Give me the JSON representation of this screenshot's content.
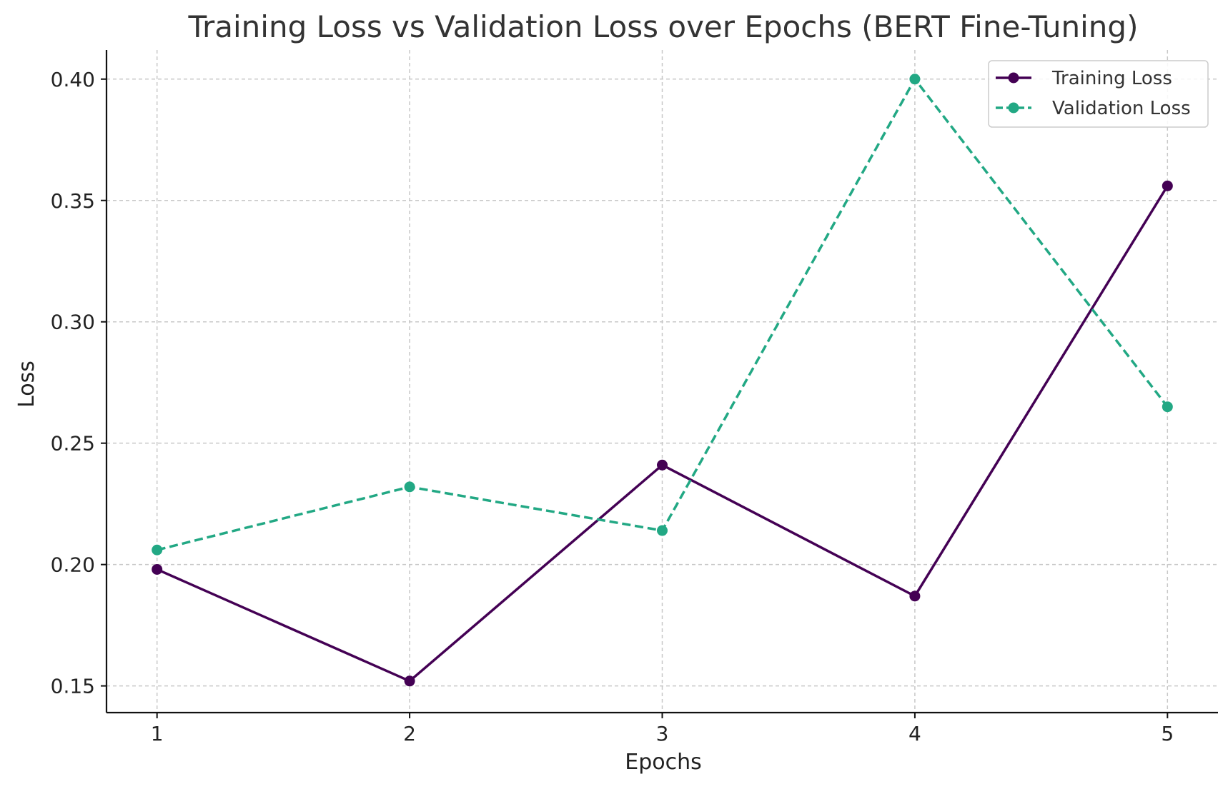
{
  "chart_data": {
    "type": "line",
    "title": "Training Loss vs Validation Loss over Epochs (BERT Fine-Tuning)",
    "xlabel": "Epochs",
    "ylabel": "Loss",
    "x": [
      1,
      2,
      3,
      4,
      5
    ],
    "xlim": [
      0.8,
      5.2
    ],
    "ylim": [
      0.139,
      0.412
    ],
    "xticks": [
      "1",
      "2",
      "3",
      "4",
      "5"
    ],
    "yticks": [
      0.15,
      0.2,
      0.25,
      0.3,
      0.35,
      0.4
    ],
    "ytick_labels": [
      "0.15",
      "0.20",
      "0.25",
      "0.30",
      "0.35",
      "0.40"
    ],
    "grid": true,
    "legend_position": "top-right",
    "series": [
      {
        "name": "Training Loss",
        "values": [
          0.198,
          0.152,
          0.241,
          0.187,
          0.356
        ],
        "color": "#440154",
        "line_style": "solid",
        "marker": "circle"
      },
      {
        "name": "Validation Loss",
        "values": [
          0.206,
          0.232,
          0.214,
          0.4,
          0.265
        ],
        "color": "#22a884",
        "line_style": "dashed",
        "marker": "circle"
      }
    ]
  }
}
